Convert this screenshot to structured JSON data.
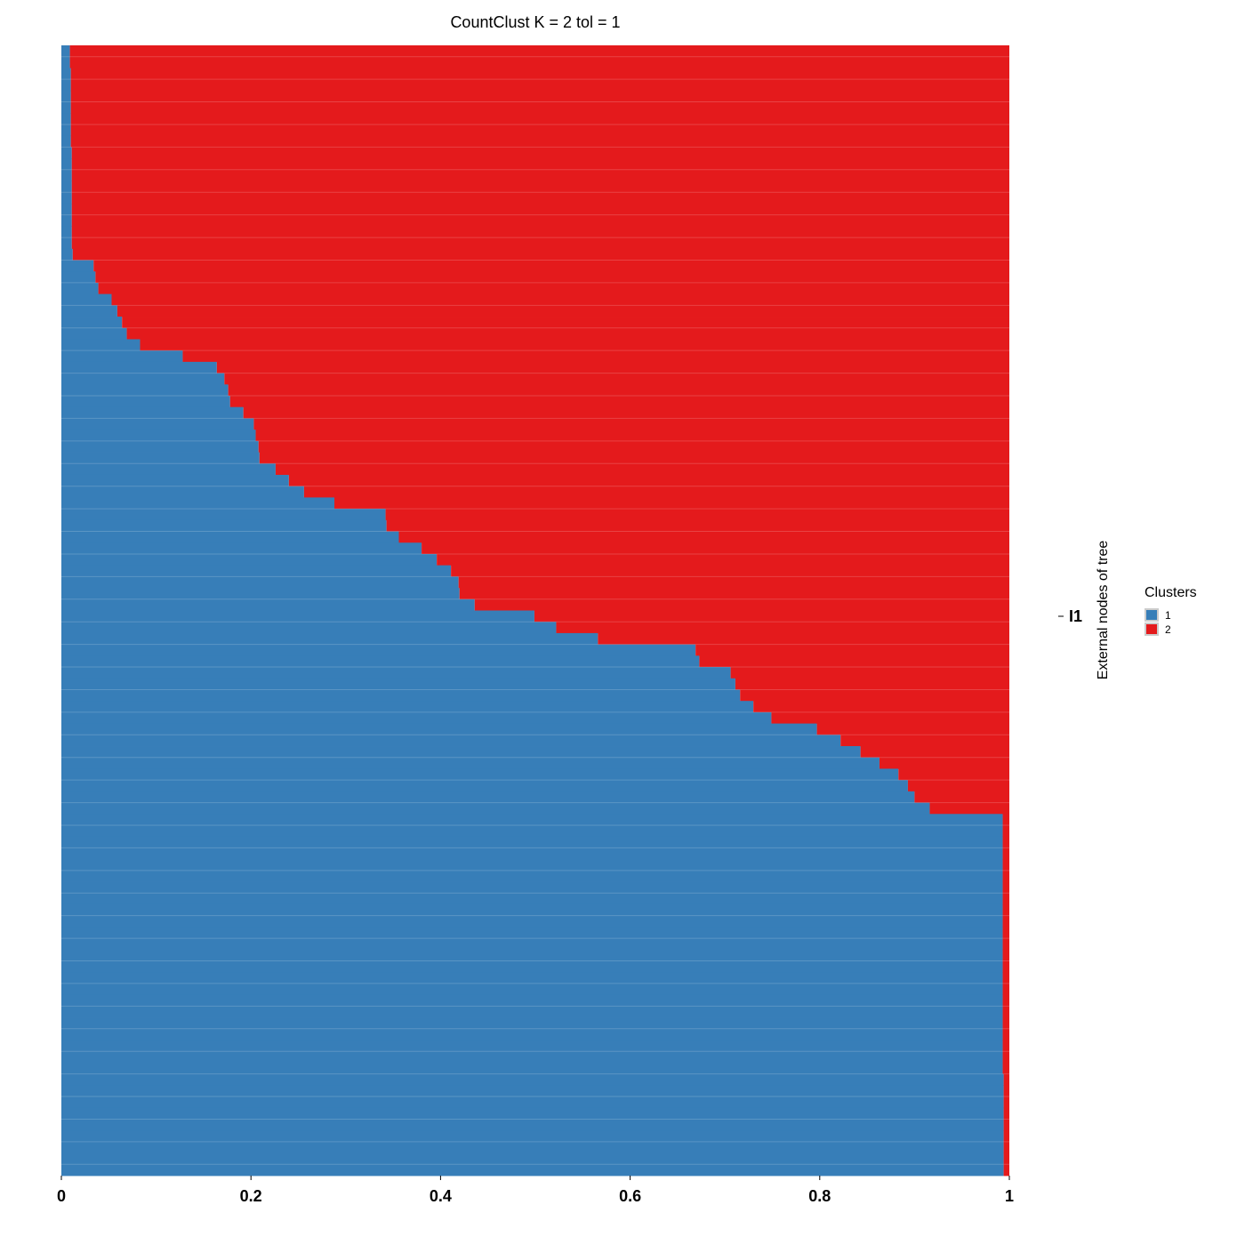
{
  "chart_data": {
    "type": "bar",
    "orientation": "horizontal-stacked-proportion",
    "title": "CountClust K =  2 tol =  1",
    "xlim": [
      0,
      1
    ],
    "x_ticks": [
      0,
      0.2,
      0.4,
      0.6,
      0.8,
      1
    ],
    "x_tick_labels": [
      "0",
      "0.2",
      "0.4",
      "0.6",
      "0.8",
      "1"
    ],
    "ylabel": "External nodes of tree",
    "y_leaf_label": "I1",
    "legend": {
      "title": "Clusters",
      "position": "right",
      "entries": [
        {
          "label": "1",
          "color": "#377EB8"
        },
        {
          "label": "2",
          "color": "#E41A1C"
        }
      ]
    },
    "colors": {
      "cluster_1": "#377EB8",
      "cluster_2": "#E41A1C"
    },
    "cluster_1_proportion_by_row": [
      0.009,
      0.009,
      0.01,
      0.01,
      0.01,
      0.01,
      0.01,
      0.01,
      0.01,
      0.011,
      0.011,
      0.011,
      0.011,
      0.011,
      0.011,
      0.011,
      0.011,
      0.011,
      0.012,
      0.034,
      0.036,
      0.039,
      0.053,
      0.059,
      0.064,
      0.069,
      0.083,
      0.128,
      0.164,
      0.172,
      0.176,
      0.178,
      0.192,
      0.203,
      0.205,
      0.208,
      0.209,
      0.226,
      0.24,
      0.256,
      0.288,
      0.342,
      0.343,
      0.356,
      0.38,
      0.396,
      0.411,
      0.419,
      0.42,
      0.436,
      0.499,
      0.522,
      0.566,
      0.669,
      0.673,
      0.706,
      0.711,
      0.716,
      0.73,
      0.749,
      0.797,
      0.822,
      0.843,
      0.863,
      0.883,
      0.893,
      0.9,
      0.916,
      0.993,
      0.993,
      0.993,
      0.993,
      0.993,
      0.993,
      0.993,
      0.993,
      0.993,
      0.993,
      0.993,
      0.993,
      0.993,
      0.993,
      0.993,
      0.993,
      0.993,
      0.993,
      0.993,
      0.993,
      0.993,
      0.993,
      0.993,
      0.994,
      0.994,
      0.994,
      0.994,
      0.994,
      0.994,
      0.994,
      0.994,
      0.994
    ],
    "series": [
      {
        "name": "1",
        "color": "#377EB8"
      },
      {
        "name": "2",
        "color": "#E41A1C"
      }
    ]
  }
}
